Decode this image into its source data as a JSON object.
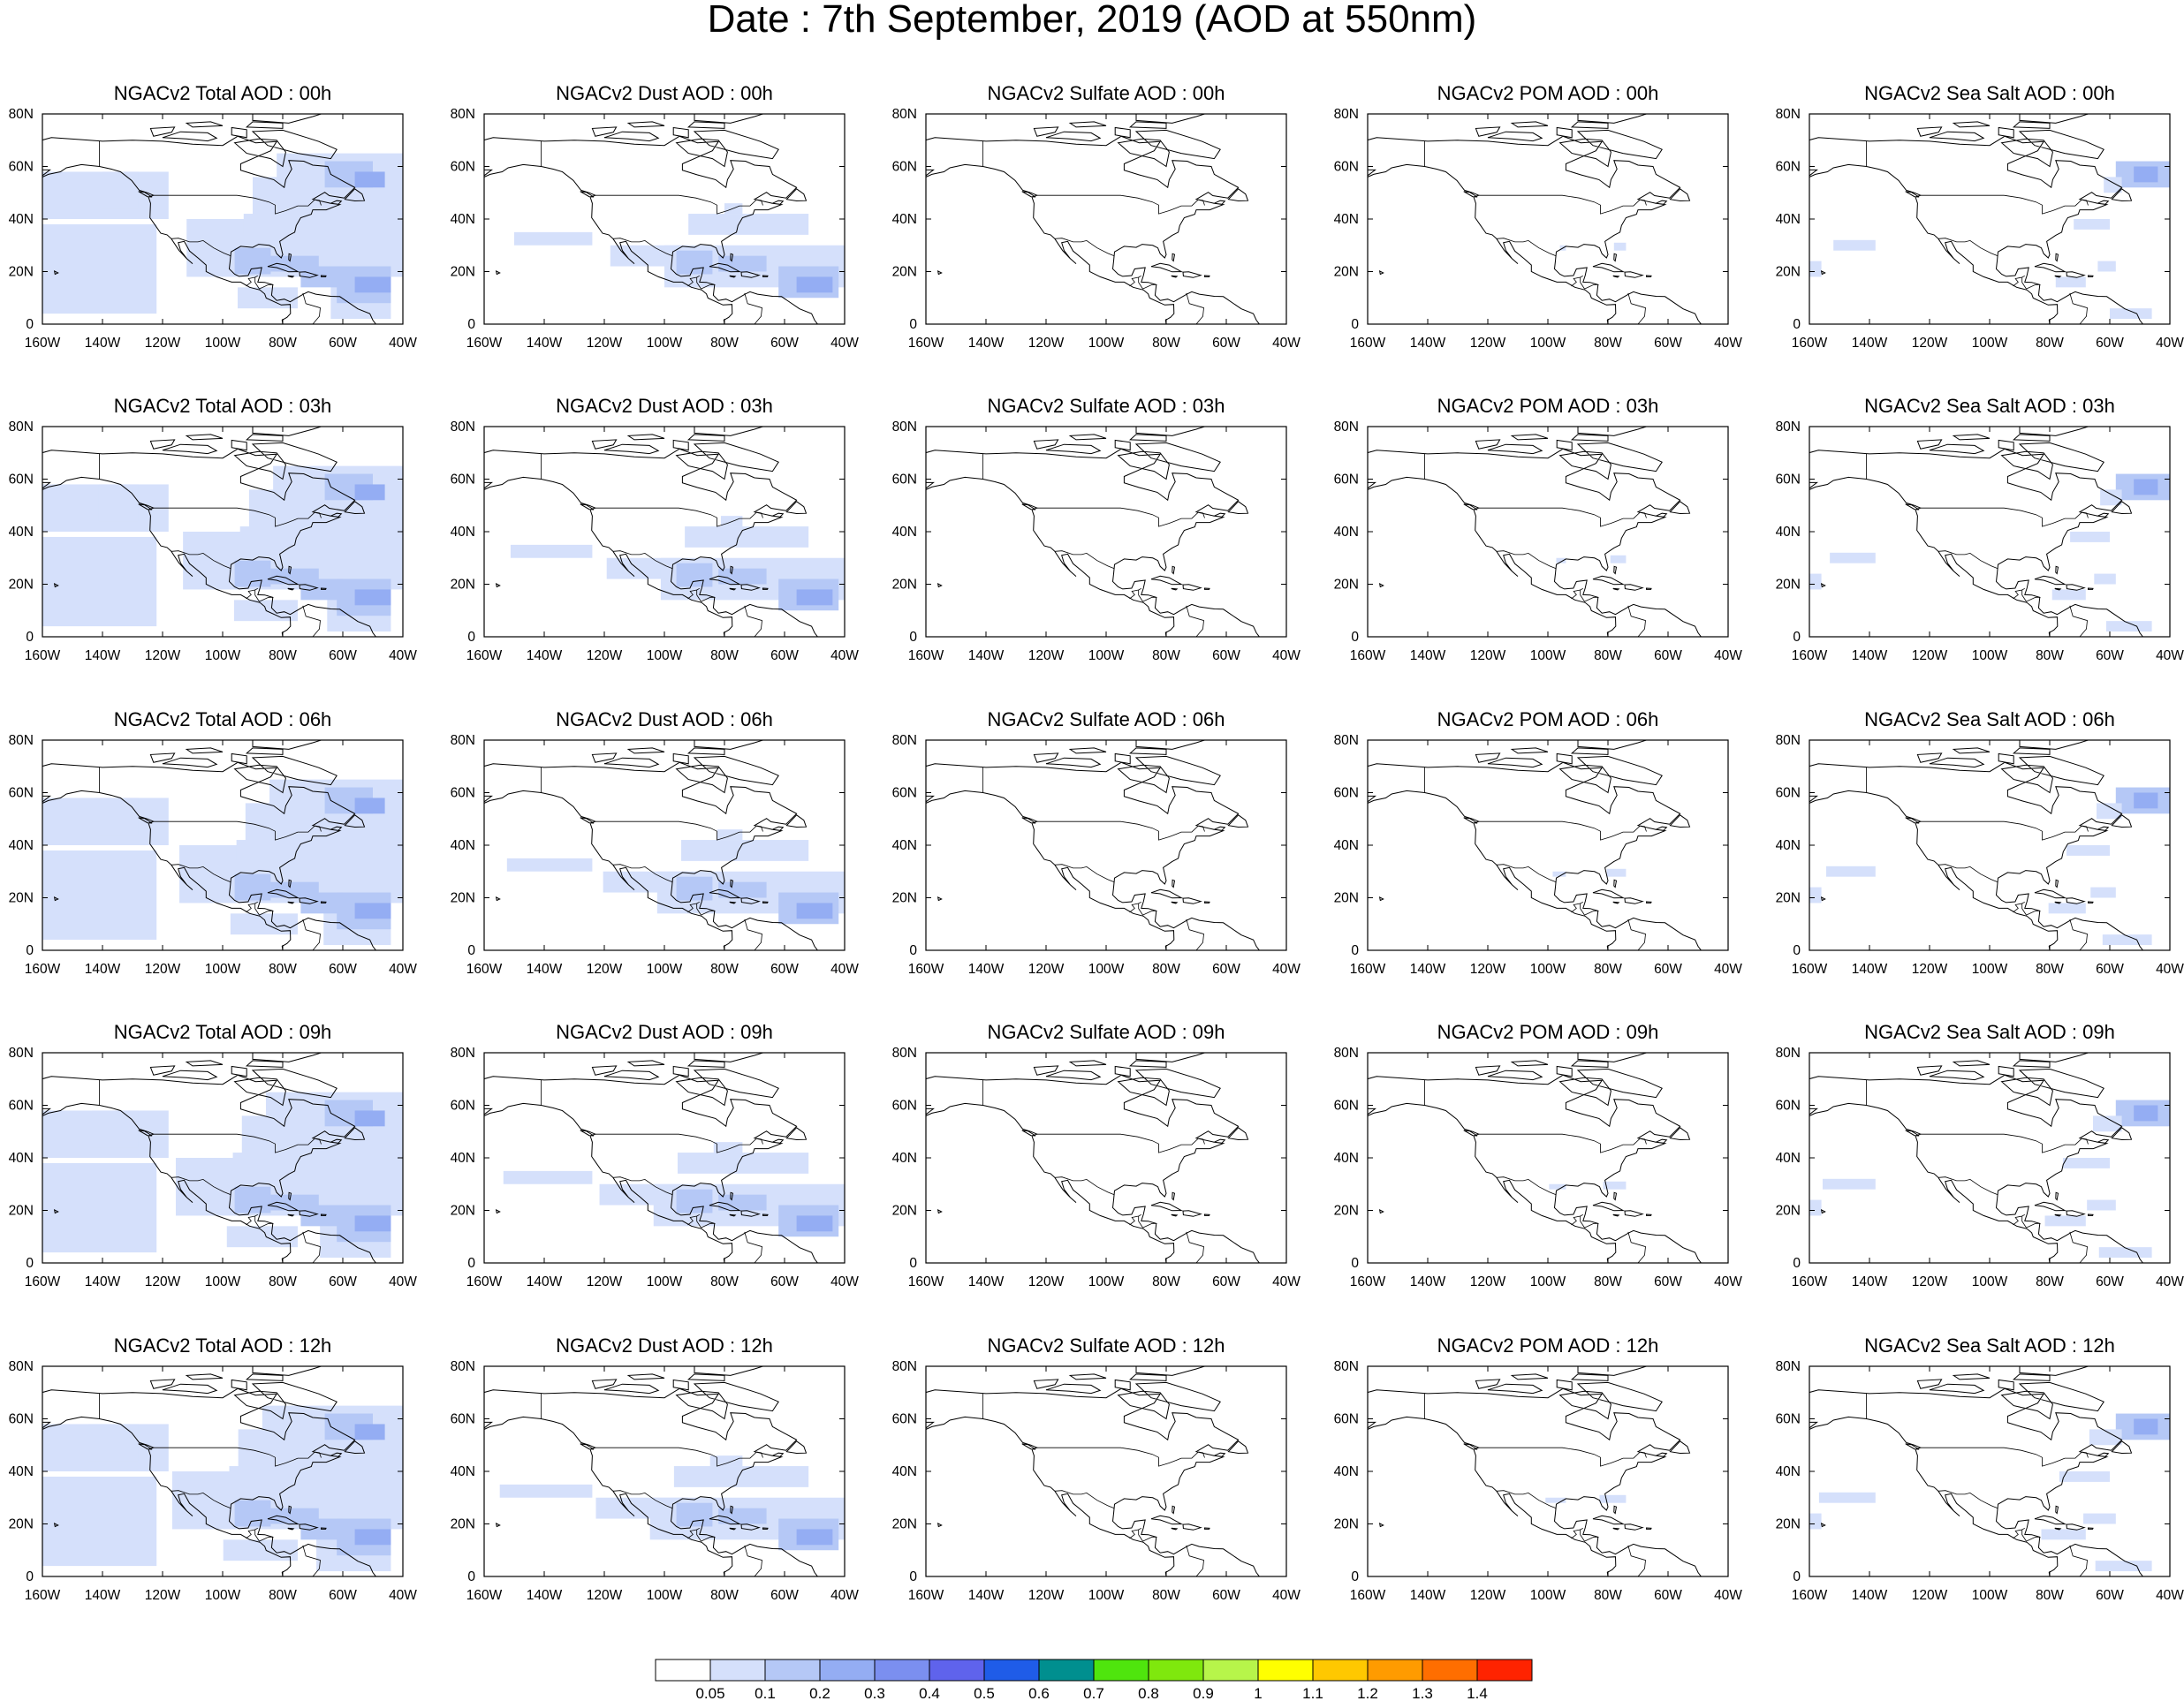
{
  "title": "Date : 7th September, 2019 (AOD at 550nm)",
  "panels": [
    {
      "title": "NGACv2 Total AOD : 00h",
      "species": "total",
      "hour": "00h"
    },
    {
      "title": "NGACv2 Dust AOD : 00h",
      "species": "dust",
      "hour": "00h"
    },
    {
      "title": "NGACv2 Sulfate AOD : 00h",
      "species": "sulfate",
      "hour": "00h"
    },
    {
      "title": "NGACv2 POM AOD : 00h",
      "species": "pom",
      "hour": "00h"
    },
    {
      "title": "NGACv2 Sea Salt AOD : 00h",
      "species": "seasalt",
      "hour": "00h"
    },
    {
      "title": "NGACv2 Total AOD : 03h",
      "species": "total",
      "hour": "03h"
    },
    {
      "title": "NGACv2 Dust AOD : 03h",
      "species": "dust",
      "hour": "03h"
    },
    {
      "title": "NGACv2 Sulfate AOD : 03h",
      "species": "sulfate",
      "hour": "03h"
    },
    {
      "title": "NGACv2 POM AOD : 03h",
      "species": "pom",
      "hour": "03h"
    },
    {
      "title": "NGACv2 Sea Salt AOD : 03h",
      "species": "seasalt",
      "hour": "03h"
    },
    {
      "title": "NGACv2 Total AOD : 06h",
      "species": "total",
      "hour": "06h"
    },
    {
      "title": "NGACv2 Dust AOD : 06h",
      "species": "dust",
      "hour": "06h"
    },
    {
      "title": "NGACv2 Sulfate AOD : 06h",
      "species": "sulfate",
      "hour": "06h"
    },
    {
      "title": "NGACv2 POM AOD : 06h",
      "species": "pom",
      "hour": "06h"
    },
    {
      "title": "NGACv2 Sea Salt AOD : 06h",
      "species": "seasalt",
      "hour": "06h"
    },
    {
      "title": "NGACv2 Total AOD : 09h",
      "species": "total",
      "hour": "09h"
    },
    {
      "title": "NGACv2 Dust AOD : 09h",
      "species": "dust",
      "hour": "09h"
    },
    {
      "title": "NGACv2 Sulfate AOD : 09h",
      "species": "sulfate",
      "hour": "09h"
    },
    {
      "title": "NGACv2 POM AOD : 09h",
      "species": "pom",
      "hour": "09h"
    },
    {
      "title": "NGACv2 Sea Salt  AOD : 09h",
      "species": "seasalt",
      "hour": "09h"
    },
    {
      "title": "NGACv2 Total AOD  : 12h",
      "species": "total",
      "hour": "12h"
    },
    {
      "title": "NGACv2 Dust AOD : 12h",
      "species": "dust",
      "hour": "12h"
    },
    {
      "title": "NGACv2 Sulfate AOD : 12h",
      "species": "sulfate",
      "hour": "12h"
    },
    {
      "title": "NGACv2 POM  AOD : 12h",
      "species": "pom",
      "hour": "12h"
    },
    {
      "title": "NGACv2 Sea Salt  AOD : 12h",
      "species": "seasalt",
      "hour": "12h"
    }
  ],
  "axes": {
    "lon_labels": [
      "160W",
      "140W",
      "120W",
      "100W",
      "80W",
      "60W",
      "40W"
    ],
    "lat_labels": [
      "0",
      "20N",
      "40N",
      "60N",
      "80N"
    ],
    "lon_range": [
      -160,
      -40
    ],
    "lat_range": [
      0,
      80
    ]
  },
  "colorbar": {
    "labels": [
      "0.05",
      "0.1",
      "0.2",
      "0.3",
      "0.4",
      "0.5",
      "0.6",
      "0.7",
      "0.8",
      "0.9",
      "1",
      "1.1",
      "1.2",
      "1.3",
      "1.4"
    ],
    "colors": [
      "#ffffff",
      "#d5e0fb",
      "#b5c8f6",
      "#94adf3",
      "#7b8ff0",
      "#5f63ec",
      "#1f5ce8",
      "#008f8f",
      "#4fe50d",
      "#7fe80d",
      "#b7f54a",
      "#ffff00",
      "#ffc800",
      "#ff9b00",
      "#ff6e00",
      "#ff2300"
    ]
  }
}
